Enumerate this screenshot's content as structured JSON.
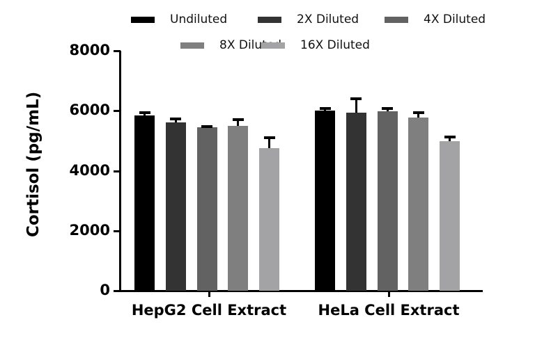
{
  "chart_data": {
    "type": "bar",
    "title": "",
    "xlabel": "",
    "ylabel": "Cortisol (pg/mL)",
    "ylim": [
      0,
      8000
    ],
    "yticks": [
      0,
      2000,
      4000,
      6000,
      8000
    ],
    "grid": false,
    "legend_position": "top",
    "categories": [
      "HepG2 Cell Extract",
      "HeLa Cell Extract"
    ],
    "series": [
      {
        "name": "Undiluted",
        "color": "#000000",
        "values": [
          5840,
          6000
        ],
        "errors": [
          120,
          100
        ]
      },
      {
        "name": "2X Diluted",
        "color": "#333333",
        "values": [
          5610,
          5940
        ],
        "errors": [
          140,
          480
        ]
      },
      {
        "name": "4X Diluted",
        "color": "#626262",
        "values": [
          5450,
          5980
        ],
        "errors": [
          40,
          110
        ]
      },
      {
        "name": "8X Diluted",
        "color": "#7f7f7f",
        "values": [
          5500,
          5775
        ],
        "errors": [
          230,
          180
        ]
      },
      {
        "name": "16X Diluted",
        "color": "#a3a3a5",
        "values": [
          4750,
          4990
        ],
        "errors": [
          370,
          160
        ]
      }
    ]
  }
}
